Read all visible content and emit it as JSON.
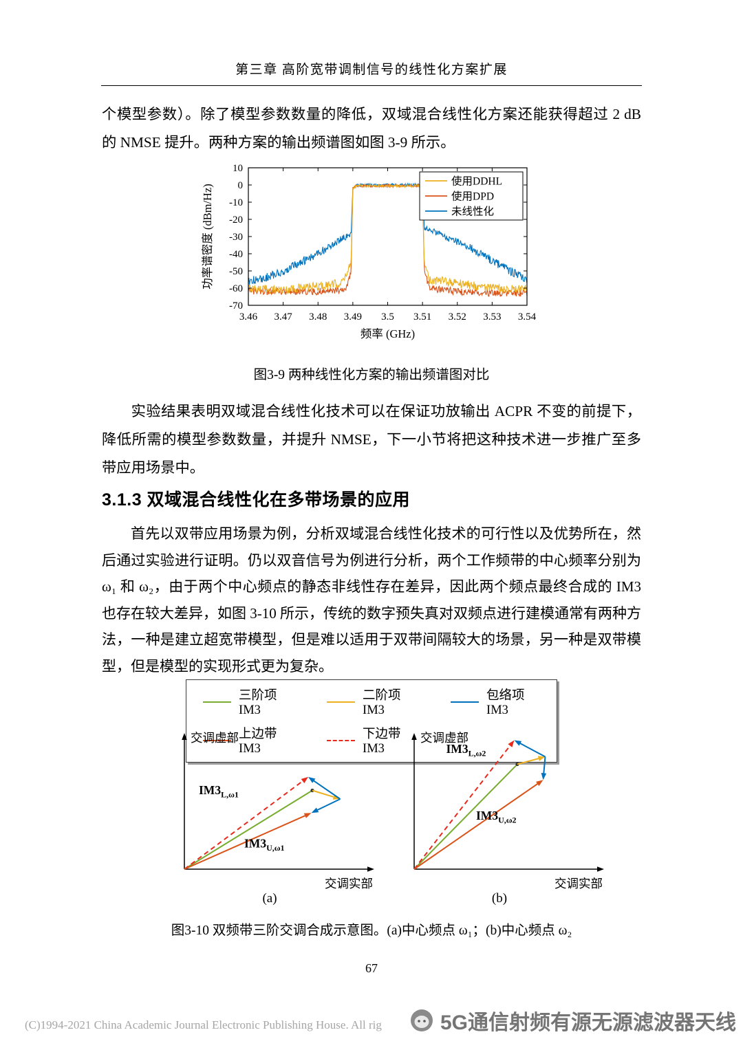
{
  "page": {
    "header": "第三章 高阶宽带调制信号的线性化方案扩展",
    "page_number": "67",
    "copyright": "(C)1994-2021 China Academic Journal Electronic Publishing House. All rig",
    "watermark": "5G通信射频有源无源滤波器天线"
  },
  "paragraphs": {
    "p1": "个模型参数）。除了模型参数数量的降低，双域混合线性化方案还能获得超过 2 dB 的 NMSE 提升。两种方案的输出频谱图如图 3-9 所示。",
    "p2": "实验结果表明双域混合线性化技术可以在保证功放输出 ACPR 不变的前提下，降低所需的模型参数数量，并提升 NMSE，下一小节将把这种技术进一步推广至多带应用场景中。",
    "p3": "首先以双带应用场景为例，分析双域混合线性化技术的可行性以及优势所在，然后通过实验进行证明。仍以双音信号为例进行分析，两个工作频带的中心频率分别为 ω₁ 和 ω₂，由于两个中心频点的静态非线性存在差异，因此两个频点最终合成的 IM3 也存在较大差异，如图 3-10 所示，传统的数字预失真对双频点进行建模通常有两种方法，一种是建立超宽带模型，但是难以适用于双带间隔较大的场景，另一种是双带模型，但是模型的实现形式更为复杂。"
  },
  "section": {
    "heading": "3.1.3 双域混合线性化在多带场景的应用"
  },
  "figures": {
    "fig9_caption": "图3-9 两种线性化方案的输出频谱图对比",
    "fig10_caption": "图3-10 双频带三阶交调合成示意图。(a)中心频点 ω₁；(b)中心频点 ω₂"
  },
  "chart_data": [
    {
      "type": "line",
      "title": "",
      "xlabel": "频率 (GHz)",
      "ylabel": "功率谱密度 (dBm/Hz)",
      "xlim": [
        3.46,
        3.54
      ],
      "ylim": [
        -70,
        10
      ],
      "xticks": [
        3.46,
        3.47,
        3.48,
        3.49,
        3.5,
        3.51,
        3.52,
        3.53,
        3.54
      ],
      "xtick_labels": [
        "3.46",
        "3.47",
        "3.48",
        "3.49",
        "3.5",
        "3.51",
        "3.52",
        "3.53",
        "3.54"
      ],
      "yticks": [
        10,
        0,
        -10,
        -20,
        -30,
        -40,
        -50,
        -60,
        -70
      ],
      "ytick_labels": [
        "10",
        "0",
        "-10",
        "-20",
        "-30",
        "-40",
        "-50",
        "-60",
        "-70"
      ],
      "grid": false,
      "legend_position": "top-right",
      "series": [
        {
          "name": "使用DDHL",
          "color": "#EDB120",
          "envelope": [
            [
              3.46,
              -60,
              2.5
            ],
            [
              3.47,
              -61,
              2.5
            ],
            [
              3.48,
              -59,
              2.5
            ],
            [
              3.487,
              -57,
              2.5
            ],
            [
              3.4895,
              -45,
              1.5
            ],
            [
              3.49,
              -2,
              0.8
            ],
            [
              3.491,
              -0.5,
              0.8
            ],
            [
              3.509,
              -0.5,
              0.8
            ],
            [
              3.51,
              -2,
              0.8
            ],
            [
              3.5105,
              -45,
              1.5
            ],
            [
              3.512,
              -55,
              2.5
            ],
            [
              3.52,
              -57,
              2.5
            ],
            [
              3.53,
              -60,
              2.5
            ],
            [
              3.54,
              -61,
              2.5
            ]
          ]
        },
        {
          "name": "使用DPD",
          "color": "#D95319",
          "envelope": [
            [
              3.46,
              -62,
              2.0
            ],
            [
              3.47,
              -62,
              2.0
            ],
            [
              3.48,
              -62,
              2.0
            ],
            [
              3.488,
              -61,
              2.0
            ],
            [
              3.4895,
              -50,
              1.5
            ],
            [
              3.49,
              -2,
              0.8
            ],
            [
              3.491,
              -0.5,
              0.8
            ],
            [
              3.509,
              -0.5,
              0.8
            ],
            [
              3.51,
              -2,
              0.8
            ],
            [
              3.5105,
              -50,
              1.5
            ],
            [
              3.512,
              -60,
              2.0
            ],
            [
              3.52,
              -62,
              2.0
            ],
            [
              3.53,
              -63,
              2.0
            ],
            [
              3.54,
              -63,
              2.0
            ]
          ]
        },
        {
          "name": "未线性化",
          "color": "#0072BD",
          "envelope": [
            [
              3.46,
              -56,
              2.5
            ],
            [
              3.465,
              -54,
              2.5
            ],
            [
              3.47,
              -50,
              2.5
            ],
            [
              3.475,
              -45,
              2.5
            ],
            [
              3.48,
              -40,
              2.5
            ],
            [
              3.484,
              -35,
              2.0
            ],
            [
              3.487,
              -31,
              2.0
            ],
            [
              3.4895,
              -29,
              1.5
            ],
            [
              3.49,
              -2,
              0.8
            ],
            [
              3.491,
              0,
              0.8
            ],
            [
              3.509,
              0,
              0.8
            ],
            [
              3.51,
              -2,
              0.8
            ],
            [
              3.5105,
              -25,
              1.5
            ],
            [
              3.513,
              -27,
              2.0
            ],
            [
              3.516,
              -30,
              2.0
            ],
            [
              3.52,
              -33,
              2.0
            ],
            [
              3.525,
              -38,
              2.5
            ],
            [
              3.53,
              -44,
              2.5
            ],
            [
              3.535,
              -50,
              2.5
            ],
            [
              3.54,
              -55,
              2.5
            ]
          ]
        }
      ]
    },
    {
      "type": "vector-diagram",
      "title": "双频带三阶交调合成示意图",
      "legend": [
        {
          "label": "三阶项IM3",
          "color": "#77AC30",
          "style": "solid"
        },
        {
          "label": "二阶项IM3",
          "color": "#EDB120",
          "style": "solid"
        },
        {
          "label": "包络项IM3",
          "color": "#0072BD",
          "style": "solid"
        },
        {
          "label": "上边带IM3",
          "color": "#D95319",
          "style": "solid"
        },
        {
          "label": "下边带IM3",
          "color": "#E8291C",
          "style": "dashed"
        }
      ],
      "diagrams": [
        {
          "sub_label": "(a)",
          "xlabel": "交调实部",
          "ylabel": "交调虚部",
          "vectors": [
            {
              "name": "third-order-term",
              "from": [
                0,
                0
              ],
              "to": [
                0.62,
                0.525
              ],
              "color": "#77AC30",
              "style": "solid",
              "arrow": false,
              "dot": true
            },
            {
              "name": "lower-sideband-im3",
              "from": [
                0,
                0
              ],
              "to": [
                0.6,
                0.615
              ],
              "color": "#E8291C",
              "style": "dashed",
              "arrow": true
            },
            {
              "name": "upper-sideband-im3",
              "from": [
                0,
                0
              ],
              "to": [
                0.615,
                0.375
              ],
              "color": "#D95319",
              "style": "solid",
              "arrow": true
            },
            {
              "name": "second-order-term",
              "from": [
                0.62,
                0.525
              ],
              "to": [
                0.755,
                0.468
              ],
              "color": "#EDB120",
              "style": "solid",
              "arrow": true
            },
            {
              "name": "envelope-term-up",
              "from": [
                0.755,
                0.468
              ],
              "to": [
                0.6,
                0.615
              ],
              "color": "#0072BD",
              "style": "solid",
              "arrow": true
            },
            {
              "name": "envelope-term-down",
              "from": [
                0.755,
                0.468
              ],
              "to": [
                0.615,
                0.375
              ],
              "color": "#0072BD",
              "style": "solid",
              "arrow": true
            }
          ],
          "annotations": [
            {
              "main": "IM3",
              "sub": "L,ω1",
              "x": 0.07,
              "y": 0.5
            },
            {
              "main": "IM3",
              "sub": "U,ω1",
              "x": 0.29,
              "y": 0.145
            }
          ]
        },
        {
          "sub_label": "(b)",
          "xlabel": "交调实部",
          "ylabel": "交调虚部",
          "vectors": [
            {
              "name": "third-order-term",
              "from": [
                0,
                0
              ],
              "to": [
                0.5,
                0.7
              ],
              "color": "#77AC30",
              "style": "solid",
              "arrow": false,
              "dot": true
            },
            {
              "name": "lower-sideband-im3",
              "from": [
                0,
                0
              ],
              "to": [
                0.485,
                0.86
              ],
              "color": "#E8291C",
              "style": "dashed",
              "arrow": true
            },
            {
              "name": "upper-sideband-im3",
              "from": [
                0,
                0
              ],
              "to": [
                0.625,
                0.595
              ],
              "color": "#D95319",
              "style": "solid",
              "arrow": true
            },
            {
              "name": "second-order-term",
              "from": [
                0.5,
                0.7
              ],
              "to": [
                0.635,
                0.75
              ],
              "color": "#EDB120",
              "style": "solid",
              "arrow": true
            },
            {
              "name": "envelope-term-up",
              "from": [
                0.635,
                0.75
              ],
              "to": [
                0.485,
                0.86
              ],
              "color": "#0072BD",
              "style": "solid",
              "arrow": true
            },
            {
              "name": "envelope-term-down",
              "from": [
                0.635,
                0.75
              ],
              "to": [
                0.625,
                0.595
              ],
              "color": "#0072BD",
              "style": "solid",
              "arrow": true
            }
          ],
          "annotations": [
            {
              "main": "IM3",
              "sub": "L,ω2",
              "x": 0.155,
              "y": 0.775
            },
            {
              "main": "IM3",
              "sub": "U,ω2",
              "x": 0.3,
              "y": 0.33
            }
          ]
        }
      ]
    }
  ]
}
